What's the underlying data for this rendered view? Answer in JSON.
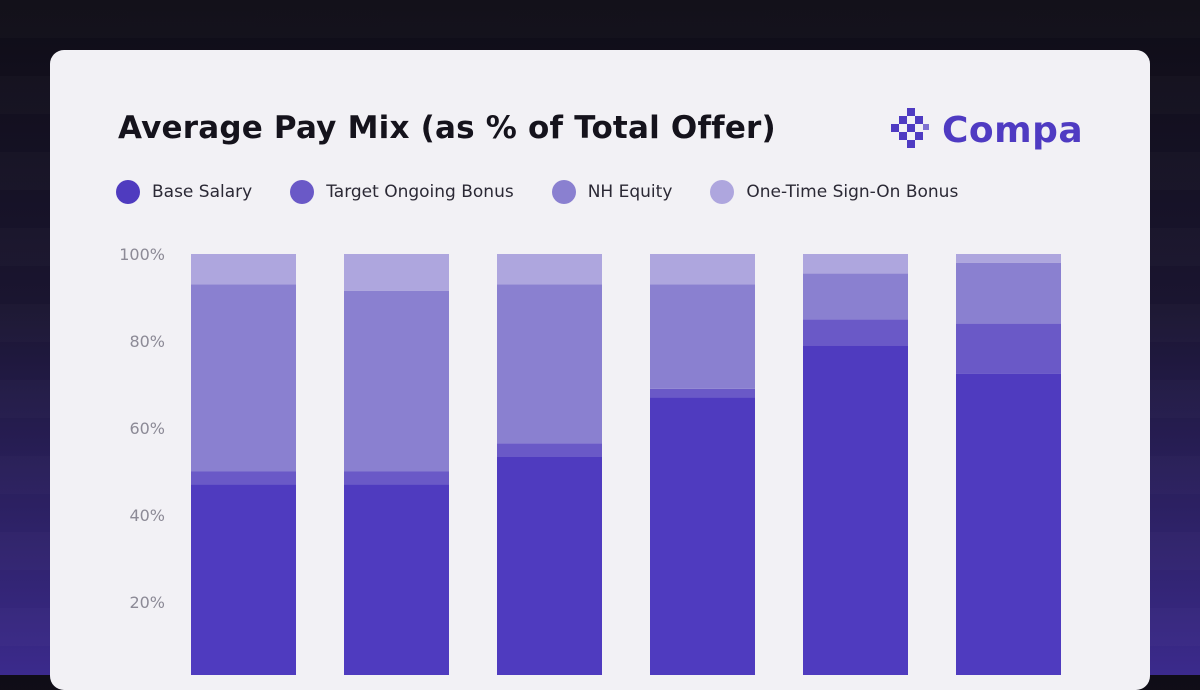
{
  "card": {
    "title": "Average Pay Mix (as % of Total Offer)",
    "logo": {
      "text": "Compa",
      "icon": "compa-logo-icon",
      "color": "#4f3bc2"
    }
  },
  "chart_data": {
    "type": "bar",
    "stacked": true,
    "title": "Average Pay Mix (as % of Total Offer)",
    "xlabel": "",
    "ylabel": "",
    "ylim": [
      0,
      100
    ],
    "yticks": [
      "20%",
      "40%",
      "60%",
      "80%",
      "100%"
    ],
    "grid": false,
    "legend_position": "top-left",
    "categories": [
      "",
      "",
      "",
      "",
      "",
      ""
    ],
    "series": [
      {
        "name": "Base Salary",
        "color": "#4f3bbf",
        "values": [
          47,
          47,
          53.5,
          67,
          79,
          72.5
        ]
      },
      {
        "name": "Target Ongoing Bonus",
        "color": "#6a59c7",
        "values": [
          3,
          3,
          3,
          2,
          6,
          11.5
        ]
      },
      {
        "name": "NH Equity",
        "color": "#8a80d0",
        "values": [
          43,
          41.5,
          36.5,
          24,
          10.5,
          14
        ]
      },
      {
        "name": "One-Time Sign-On Bonus",
        "color": "#aea6de",
        "values": [
          7,
          8.5,
          7,
          7,
          4.5,
          2
        ]
      }
    ]
  }
}
